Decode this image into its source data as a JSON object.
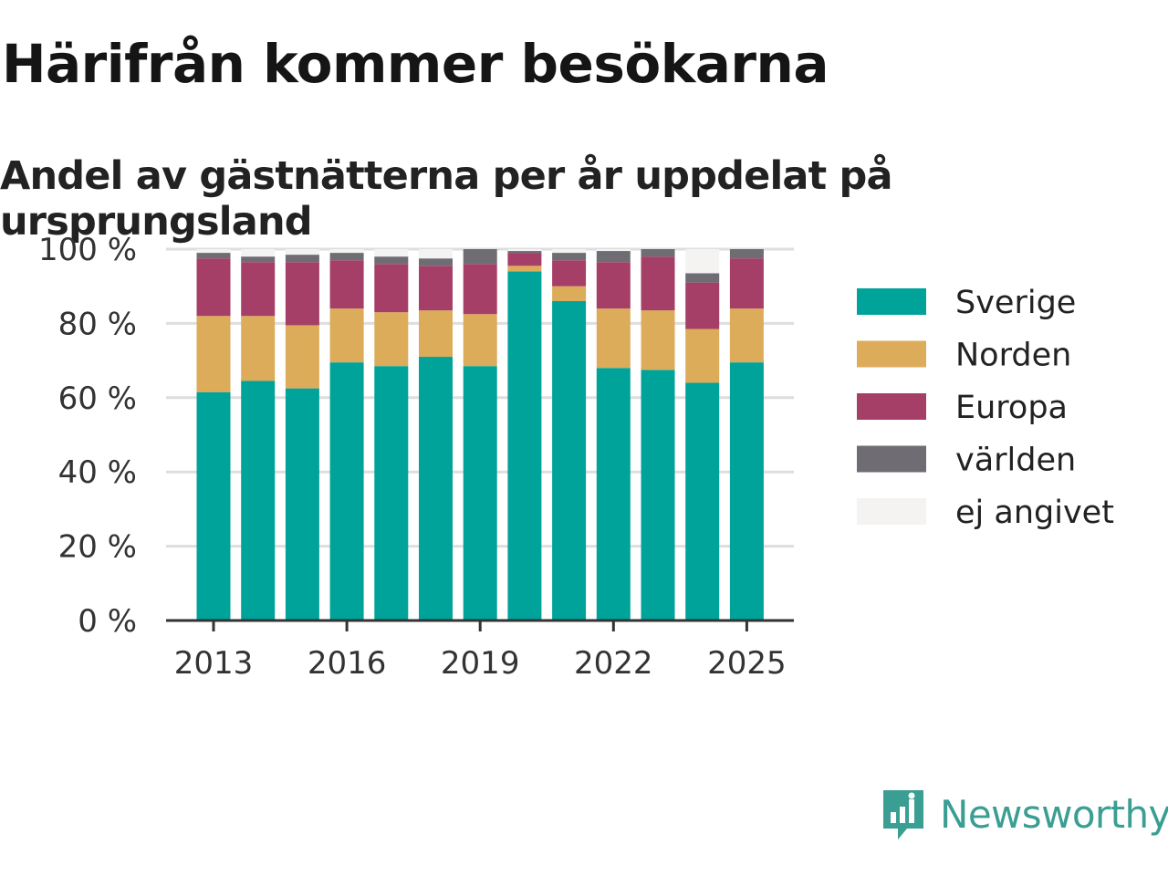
{
  "header": {
    "title": "Härifrån kommer besökarna",
    "subtitle": "Andel av gästnätterna per år uppdelat på ursprungsland"
  },
  "brand": {
    "name": "Newsworthy",
    "icon": "newsworthy-logo-icon",
    "color": "#3a9e93"
  },
  "chart_data": {
    "type": "bar",
    "stacked": true,
    "categories": [
      2013,
      2014,
      2015,
      2016,
      2017,
      2018,
      2019,
      2020,
      2021,
      2022,
      2023,
      2024,
      2025
    ],
    "x_tick_labels": [
      "2013",
      "2016",
      "2019",
      "2022",
      "2025"
    ],
    "y_ticks": [
      0,
      20,
      40,
      60,
      80,
      100
    ],
    "y_tick_labels": [
      "0 %",
      "20 %",
      "40 %",
      "60 %",
      "80 %",
      "100 %"
    ],
    "ylim": [
      0,
      100
    ],
    "xlabel": "",
    "ylabel": "",
    "grid": "horizontal",
    "legend_position": "right",
    "series": [
      {
        "name": "Sverige",
        "color": "#00a39a",
        "values": [
          61.5,
          64.5,
          62.5,
          69.5,
          68.5,
          71,
          68.5,
          94,
          86,
          68,
          67.5,
          64,
          69.5
        ]
      },
      {
        "name": "Norden",
        "color": "#dcac5b",
        "values": [
          20.5,
          17.5,
          17,
          14.5,
          14.5,
          12.5,
          14,
          1.5,
          4,
          16,
          16,
          14.5,
          14.5
        ]
      },
      {
        "name": "Europa",
        "color": "#a63f67",
        "values": [
          15.5,
          14.5,
          17,
          13,
          13,
          12,
          13.5,
          3.5,
          7,
          12.5,
          14.5,
          12.5,
          13.5
        ]
      },
      {
        "name": "världen",
        "color": "#6f6d73",
        "values": [
          1.5,
          1.5,
          2,
          2,
          2,
          2,
          4,
          0.5,
          2,
          3,
          2,
          2.5,
          2.5
        ]
      },
      {
        "name": "ej angivet",
        "color": "#f4f3f2",
        "values": [
          1,
          2,
          1.5,
          1,
          2,
          2.5,
          0,
          0.5,
          1,
          0.5,
          0,
          6.5,
          0
        ]
      }
    ]
  }
}
